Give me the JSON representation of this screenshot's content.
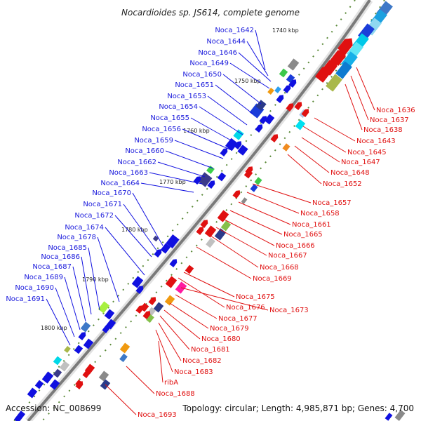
{
  "title": "Nocardioides sp. JS614, complete genome",
  "accession": "Accession: NC_008699",
  "topology": "Topology: circular; Length: 4,985,871 bp; Genes: 4,700",
  "kbp_labels": [
    "1740 kbp",
    "1750 kbp",
    "1760 kbp",
    "1770 kbp",
    "1780 kbp",
    "1790 kbp",
    "1800 kbp"
  ],
  "left_genes": [
    "Noca_1642",
    "Noca_1644",
    "Noca_1646",
    "Noca_1649",
    "Noca_1650",
    "Noca_1651",
    "Noca_1653",
    "Noca_1654",
    "Noca_1655",
    "Noca_1656",
    "Noca_1659",
    "Noca_1660",
    "Noca_1662",
    "Noca_1663",
    "Noca_1664",
    "Noca_1670",
    "Noca_1671",
    "Noca_1672",
    "Noca_1674",
    "Noca_1678",
    "Noca_1685",
    "Noca_1686",
    "Noca_1687",
    "Noca_1689",
    "Noca_1690",
    "Noca_1691"
  ],
  "right_genes": [
    "Noca_1636",
    "Noca_1637",
    "Noca_1638",
    "Noca_1643",
    "Noca_1645",
    "Noca_1647",
    "Noca_1648",
    "Noca_1652",
    "Noca_1657",
    "Noca_1658",
    "Noca_1661",
    "Noca_1665",
    "Noca_1666",
    "Noca_1667",
    "Noca_1668",
    "Noca_1669",
    "Noca_1675",
    "Noca_1676",
    "Noca_1673",
    "Noca_1677",
    "Noca_1679",
    "Noca_1680",
    "Noca_1681",
    "Noca_1682",
    "Noca_1683",
    "ribA",
    "Noca_1688",
    "Noca_1693"
  ],
  "colors": {
    "plus_strand": "#1010e0",
    "minus_strand": "#e01010",
    "backbone": "#7a7a7a",
    "title_text": "#222222"
  }
}
